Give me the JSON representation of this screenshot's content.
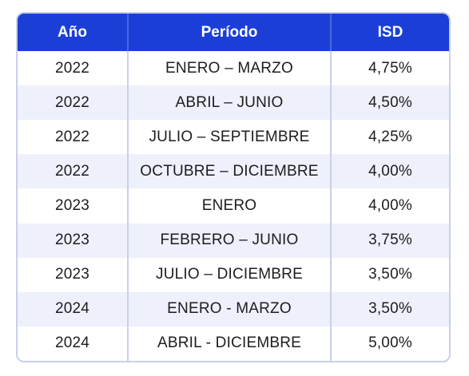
{
  "table": {
    "headers": [
      "Año",
      "Período",
      "ISD"
    ],
    "rows": [
      [
        "2022",
        "ENERO – MARZO",
        "4,75%"
      ],
      [
        "2022",
        "ABRIL – JUNIO",
        "4,50%"
      ],
      [
        "2022",
        "JULIO – SEPTIEMBRE",
        "4,25%"
      ],
      [
        "2022",
        "OCTUBRE – DICIEMBRE",
        "4,00%"
      ],
      [
        "2023",
        "ENERO",
        "4,00%"
      ],
      [
        "2023",
        "FEBRERO – JUNIO",
        "3,75%"
      ],
      [
        "2023",
        "JULIO – DICIEMBRE",
        "3,50%"
      ],
      [
        "2024",
        "ENERO - MARZO",
        "3,50%"
      ],
      [
        "2024",
        "ABRIL - DICIEMBRE",
        "5,00%"
      ]
    ]
  },
  "colors": {
    "header_bg": "#1b3fd6",
    "header_text": "#ffffff",
    "alt_row_bg": "#eef1fb",
    "border": "#c9d0e8"
  }
}
